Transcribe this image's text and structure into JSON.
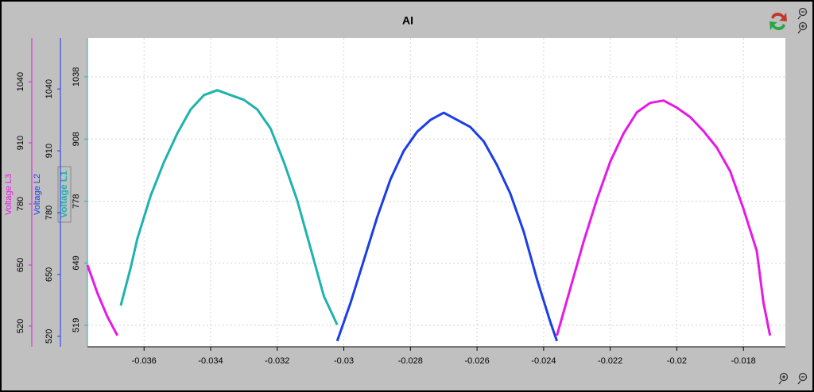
{
  "chart_data": {
    "type": "line",
    "title": "AI",
    "xlim": [
      -0.0377,
      -0.01674
    ],
    "xticks": [
      -0.036,
      -0.034,
      -0.032,
      -0.03,
      -0.028,
      -0.026,
      -0.024,
      -0.022,
      -0.02,
      -0.018
    ],
    "grid": true,
    "y_axes": [
      {
        "label": "Voltage L1",
        "color": "#1fb3ae",
        "lim": [
          474,
          1119
        ],
        "ticks": [
          519,
          649,
          778,
          908,
          1038
        ]
      },
      {
        "label": "Voltage L2",
        "color": "#1a3ee8",
        "lim": [
          498,
          1147
        ],
        "ticks": [
          520,
          650,
          780,
          910,
          1040
        ]
      },
      {
        "label": "Voltage L3",
        "color": "#e619e6",
        "lim": [
          476,
          1133
        ],
        "ticks": [
          520,
          650,
          780,
          910,
          1040
        ]
      }
    ],
    "series": [
      {
        "name": "Voltage L1",
        "color": "#1fb3ae",
        "axis": 0,
        "x": [
          -0.0367,
          -0.0364,
          -0.0362,
          -0.0358,
          -0.0354,
          -0.035,
          -0.0346,
          -0.0342,
          -0.0338,
          -0.0334,
          -0.033,
          -0.0326,
          -0.0322,
          -0.0318,
          -0.0314,
          -0.031,
          -0.0306,
          -0.0302
        ],
        "values": [
          560,
          640,
          700,
          790,
          860,
          920,
          970,
          1000,
          1010,
          1000,
          990,
          970,
          930,
          860,
          780,
          680,
          580,
          520
        ]
      },
      {
        "name": "Voltage L2",
        "color": "#1a3ee8",
        "axis": 1,
        "x": [
          -0.0302,
          -0.0298,
          -0.0294,
          -0.029,
          -0.0286,
          -0.0282,
          -0.0278,
          -0.0274,
          -0.027,
          -0.0266,
          -0.0262,
          -0.0258,
          -0.0254,
          -0.025,
          -0.0246,
          -0.0242,
          -0.0238,
          -0.0236
        ],
        "values": [
          510,
          590,
          680,
          770,
          850,
          910,
          950,
          975,
          990,
          975,
          960,
          930,
          880,
          820,
          740,
          640,
          550,
          510
        ]
      },
      {
        "name": "Voltage L3",
        "color": "#e619e6",
        "axis": 2,
        "x": [
          -0.0377,
          -0.0374,
          -0.0371,
          -0.0368,
          -0.03,
          -0.0236,
          -0.0232,
          -0.0228,
          -0.0224,
          -0.022,
          -0.0216,
          -0.0212,
          -0.0208,
          -0.0204,
          -0.02,
          -0.0196,
          -0.0192,
          -0.0188,
          -0.0184,
          -0.018,
          -0.0176,
          -0.0174,
          -0.0172
        ],
        "values": [
          650,
          590,
          540,
          500,
          null,
          500,
          600,
          700,
          790,
          870,
          930,
          975,
          995,
          1000,
          985,
          965,
          935,
          900,
          850,
          770,
          680,
          570,
          500
        ]
      }
    ]
  }
}
